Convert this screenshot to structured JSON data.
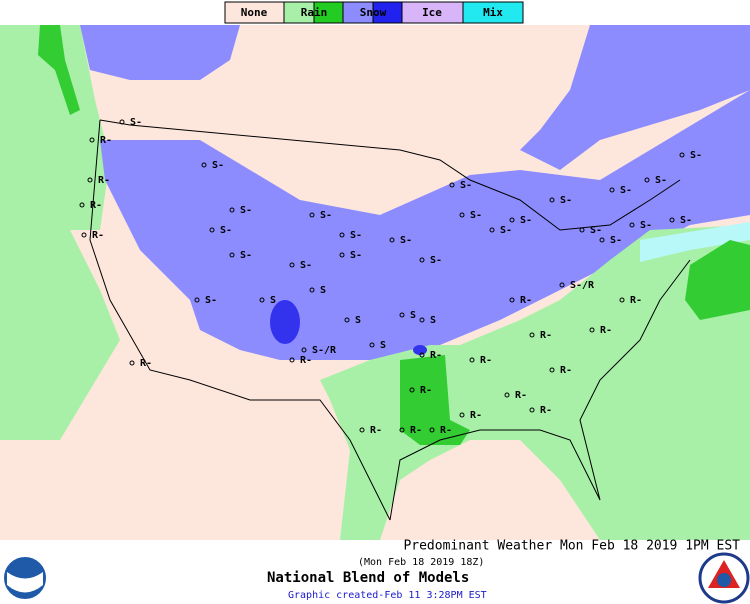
{
  "legend": {
    "items": [
      {
        "label": "None"
      },
      {
        "label": "Rain"
      },
      {
        "label": "Snow"
      },
      {
        "label": "Ice"
      },
      {
        "label": "Mix"
      }
    ]
  },
  "stations": {
    "labels": [
      "R-",
      "R-",
      "R-",
      "R-",
      "S-",
      "S-",
      "S-",
      "S-",
      "S-",
      "S-",
      "S-",
      "S-",
      "S-",
      "S-",
      "S-",
      "S-",
      "S-",
      "S-",
      "S-",
      "S",
      "S",
      "S",
      "S",
      "S",
      "S",
      "S-",
      "S-",
      "S-",
      "R-",
      "R-",
      "R-",
      "R-",
      "R-",
      "R-",
      "R-",
      "R-",
      "R-",
      "R-",
      "R-",
      "R-",
      "R-",
      "R-",
      "S-/R",
      "S-/R",
      "S-",
      "S-",
      "S-",
      "S-",
      "S-",
      "S-",
      "R-",
      "R-"
    ]
  },
  "footer": {
    "title": "Predominant Weather Mon Feb 18 2019  1PM EST",
    "valid": "(Mon Feb 18 2019 18Z)",
    "model": "National Blend of Models",
    "created": "Graphic created-Feb 11  3:28PM EST"
  }
}
